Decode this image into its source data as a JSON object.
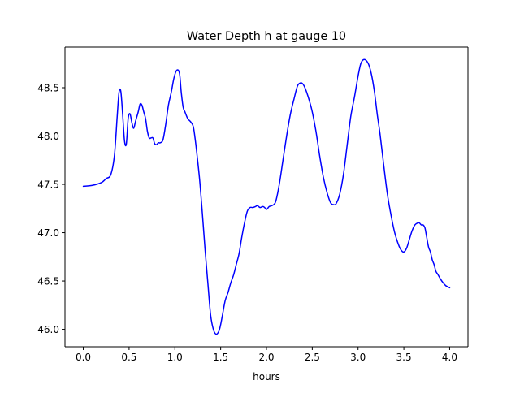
{
  "chart_data": {
    "type": "line",
    "title": "Water Depth h at gauge 10",
    "xlabel": "hours",
    "ylabel": "",
    "xlim": [
      -0.2,
      4.2
    ],
    "ylim": [
      45.82,
      48.92
    ],
    "xticks": [
      0.0,
      0.5,
      1.0,
      1.5,
      2.0,
      2.5,
      3.0,
      3.5,
      4.0
    ],
    "xtick_labels": [
      "0.0",
      "0.5",
      "1.0",
      "1.5",
      "2.0",
      "2.5",
      "3.0",
      "3.5",
      "4.0"
    ],
    "yticks": [
      46.0,
      46.5,
      47.0,
      47.5,
      48.0,
      48.5
    ],
    "ytick_labels": [
      "46.0",
      "46.5",
      "47.0",
      "47.5",
      "48.0",
      "48.5"
    ],
    "grid": false,
    "series": [
      {
        "name": "h",
        "color": "#0000ff",
        "x": [
          0.0,
          0.1,
          0.2,
          0.25,
          0.3,
          0.34,
          0.37,
          0.39,
          0.41,
          0.43,
          0.45,
          0.47,
          0.49,
          0.51,
          0.53,
          0.55,
          0.57,
          0.6,
          0.62,
          0.64,
          0.66,
          0.68,
          0.7,
          0.72,
          0.74,
          0.76,
          0.78,
          0.8,
          0.82,
          0.84,
          0.87,
          0.9,
          0.93,
          0.96,
          0.99,
          1.02,
          1.05,
          1.07,
          1.09,
          1.11,
          1.14,
          1.17,
          1.2,
          1.22,
          1.24,
          1.27,
          1.3,
          1.33,
          1.36,
          1.39,
          1.42,
          1.45,
          1.48,
          1.5,
          1.52,
          1.55,
          1.58,
          1.61,
          1.64,
          1.67,
          1.7,
          1.73,
          1.76,
          1.79,
          1.82,
          1.85,
          1.88,
          1.9,
          1.93,
          1.96,
          1.98,
          2.0,
          2.03,
          2.06,
          2.1,
          2.14,
          2.18,
          2.22,
          2.26,
          2.3,
          2.34,
          2.38,
          2.41,
          2.44,
          2.47,
          2.5,
          2.54,
          2.58,
          2.62,
          2.66,
          2.7,
          2.73,
          2.76,
          2.8,
          2.84,
          2.88,
          2.92,
          2.96,
          3.0,
          3.03,
          3.06,
          3.09,
          3.12,
          3.15,
          3.18,
          3.21,
          3.24,
          3.28,
          3.32,
          3.36,
          3.4,
          3.44,
          3.47,
          3.5,
          3.53,
          3.56,
          3.59,
          3.62,
          3.65,
          3.67,
          3.69,
          3.71,
          3.73,
          3.75,
          3.77,
          3.79,
          3.81,
          3.83,
          3.85,
          3.87,
          3.9,
          3.93,
          3.96,
          3.98,
          4.0
        ],
        "y": [
          47.48,
          47.49,
          47.52,
          47.56,
          47.6,
          47.8,
          48.2,
          48.45,
          48.46,
          48.22,
          47.95,
          47.92,
          48.18,
          48.23,
          48.14,
          48.08,
          48.15,
          48.25,
          48.33,
          48.32,
          48.25,
          48.18,
          48.05,
          47.98,
          47.98,
          47.98,
          47.92,
          47.91,
          47.93,
          47.93,
          47.96,
          48.12,
          48.32,
          48.45,
          48.6,
          48.68,
          48.65,
          48.45,
          48.3,
          48.25,
          48.18,
          48.15,
          48.1,
          47.98,
          47.82,
          47.55,
          47.2,
          46.82,
          46.48,
          46.15,
          46.0,
          45.95,
          45.98,
          46.05,
          46.15,
          46.3,
          46.38,
          46.48,
          46.56,
          46.67,
          46.78,
          46.95,
          47.1,
          47.22,
          47.26,
          47.26,
          47.27,
          47.28,
          47.26,
          47.27,
          47.26,
          47.24,
          47.27,
          47.28,
          47.32,
          47.5,
          47.75,
          48.0,
          48.22,
          48.38,
          48.52,
          48.55,
          48.52,
          48.45,
          48.36,
          48.25,
          48.05,
          47.8,
          47.58,
          47.42,
          47.31,
          47.29,
          47.3,
          47.4,
          47.6,
          47.9,
          48.2,
          48.4,
          48.62,
          48.75,
          48.79,
          48.78,
          48.73,
          48.62,
          48.45,
          48.22,
          48.02,
          47.7,
          47.4,
          47.18,
          47.0,
          46.88,
          46.82,
          46.8,
          46.84,
          46.93,
          47.02,
          47.08,
          47.1,
          47.1,
          47.08,
          47.08,
          47.05,
          46.95,
          46.85,
          46.8,
          46.72,
          46.67,
          46.6,
          46.57,
          46.52,
          46.48,
          46.45,
          46.44,
          46.43
        ]
      }
    ]
  }
}
